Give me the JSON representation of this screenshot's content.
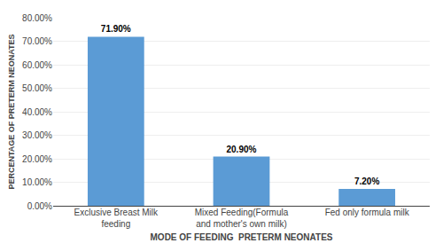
{
  "chart_data": {
    "type": "bar",
    "categories": [
      "Exclusive Breast Milk\nfeeding",
      "Mixed Feeding(Formula\nand mother's own milk)",
      "Fed only formula milk"
    ],
    "values": [
      71.9,
      20.9,
      7.2
    ],
    "value_labels": [
      "71.90%",
      "20.90%",
      "7.20%"
    ],
    "data_labels": true,
    "color": "#5b9bd5",
    "xlabel": "MODE OF FEEDING  PRETERM NEONATES",
    "ylabel": "PERCENTAGE OF PRETERM NEONATES",
    "ylim": [
      0,
      80
    ],
    "yticks": [
      {
        "value": 0,
        "label": "0.00%"
      },
      {
        "value": 10,
        "label": "10.00%"
      },
      {
        "value": 20,
        "label": "20.00%"
      },
      {
        "value": 30,
        "label": "30.00%"
      },
      {
        "value": 40,
        "label": "40.00%"
      },
      {
        "value": 50,
        "label": "50.00%"
      },
      {
        "value": 60,
        "label": "60.00%"
      },
      {
        "value": 70,
        "label": "70.00%"
      },
      {
        "value": 80,
        "label": "80.00%"
      }
    ],
    "grid": true
  }
}
